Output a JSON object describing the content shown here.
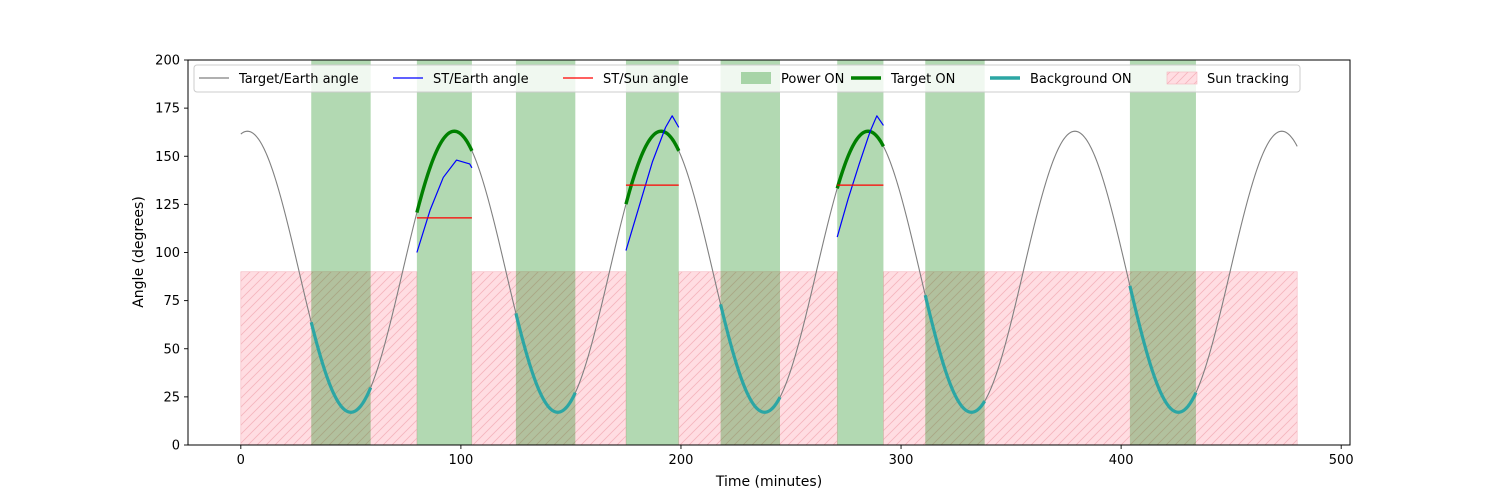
{
  "chart_data": {
    "type": "line",
    "title": "",
    "xlabel": "Time (minutes)",
    "ylabel": "Angle (degrees)",
    "xlim": [
      -24,
      504
    ],
    "ylim": [
      0,
      200
    ],
    "xticks": [
      0,
      100,
      200,
      300,
      400,
      500
    ],
    "yticks": [
      0,
      25,
      50,
      75,
      100,
      125,
      150,
      175,
      200
    ],
    "grid": false,
    "legend_placement": "top",
    "colors": {
      "target_earth": "#808080",
      "st_earth": "#0000ff",
      "st_sun": "#ff0000",
      "power_on": "#b2d8b2",
      "target_on": "#008000",
      "background_on": "#2ca6a4",
      "sun_tracking": "#ffdde2",
      "sun_hatch": "#f4b6be"
    },
    "legend": [
      {
        "label": "Target/Earth angle",
        "kind": "line",
        "key": "target_earth"
      },
      {
        "label": "ST/Earth angle",
        "kind": "line",
        "key": "st_earth"
      },
      {
        "label": "ST/Sun angle",
        "kind": "line",
        "key": "st_sun"
      },
      {
        "label": "Power ON",
        "kind": "patch",
        "key": "power_on"
      },
      {
        "label": "Target ON",
        "kind": "thick",
        "key": "target_on"
      },
      {
        "label": "Background ON",
        "kind": "thick",
        "key": "background_on"
      },
      {
        "label": "Sun tracking",
        "kind": "hatch",
        "key": "sun_tracking"
      }
    ],
    "target_earth_model": {
      "mean": 90,
      "amplitude": 73,
      "period": 94,
      "min_at": 50,
      "x_range": [
        0,
        480
      ]
    },
    "power_on_intervals": [
      [
        32,
        59
      ],
      [
        80,
        105
      ],
      [
        125,
        152
      ],
      [
        175,
        199
      ],
      [
        218,
        245
      ],
      [
        271,
        292
      ],
      [
        311,
        338
      ],
      [
        404,
        434
      ]
    ],
    "sun_tracking_intervals": [
      [
        0,
        80
      ],
      [
        105,
        175
      ],
      [
        199,
        271
      ],
      [
        292,
        480
      ]
    ],
    "sun_tracking_level": 90,
    "target_on_intervals": [
      [
        80,
        105
      ],
      [
        175,
        199
      ],
      [
        271,
        292
      ]
    ],
    "background_on_intervals": [
      [
        32,
        59
      ],
      [
        125,
        152
      ],
      [
        218,
        245
      ],
      [
        311,
        338
      ],
      [
        404,
        434
      ]
    ],
    "st_earth_segments": [
      {
        "x": [
          80,
          86,
          92,
          98,
          104,
          105
        ],
        "y": [
          100,
          122,
          139,
          148,
          146,
          144
        ]
      },
      {
        "x": [
          175,
          181,
          187,
          193,
          196,
          199
        ],
        "y": [
          101,
          124,
          147,
          165,
          171,
          165
        ]
      },
      {
        "x": [
          271,
          276,
          281,
          286,
          289,
          292
        ],
        "y": [
          108,
          128,
          146,
          163,
          171,
          166
        ]
      }
    ],
    "st_sun_segments": [
      {
        "x": [
          80,
          105
        ],
        "y": [
          118,
          118
        ]
      },
      {
        "x": [
          175,
          199
        ],
        "y": [
          135,
          135
        ]
      },
      {
        "x": [
          271,
          292
        ],
        "y": [
          135,
          135
        ]
      }
    ]
  }
}
